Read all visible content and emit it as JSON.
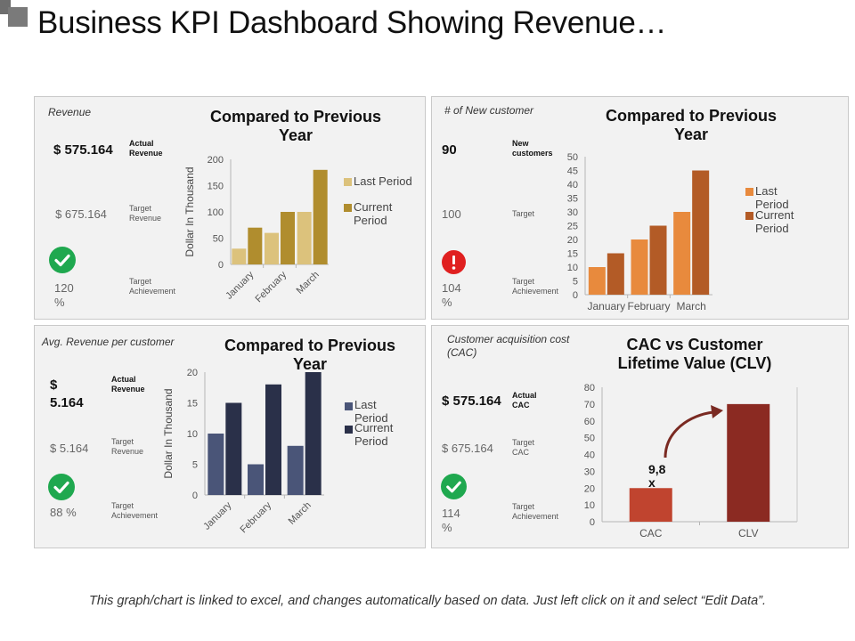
{
  "page": {
    "title": "Business KPI Dashboard Showing Revenue…",
    "footer": "This graph/chart is linked to excel, and changes automatically based on data. Just left click on it and select “Edit Data”."
  },
  "panels": {
    "revenue": {
      "label": "Revenue",
      "chart_title": "Compared to Previous Year",
      "actual_value": "$ 575.164",
      "actual_key": "Actual Revenue",
      "target_value": "$ 675.164",
      "target_key": "Target Revenue",
      "achievement_value": "120 %",
      "achievement_key": "Target Achievement",
      "status_icon": "check-circle-icon",
      "legend": [
        "Last Period",
        "Current Period"
      ]
    },
    "new_customer": {
      "label": "# of New customer",
      "chart_title": "Compared to Previous Year",
      "actual_value": "90",
      "actual_key": "New customers",
      "target_value": "100",
      "target_key": "Target",
      "achievement_value": "104 %",
      "achievement_key": "Target Achievement",
      "status_icon": "alert-circle-icon",
      "legend": [
        "Last Period",
        "Current Period"
      ]
    },
    "avg_revenue": {
      "label": "Avg. Revenue per customer",
      "chart_title": "Compared to Previous Year",
      "actual_value": "$ 5.164",
      "actual_key": "Actual Revenue",
      "target_value": "$ 5.164",
      "target_key": "Target Revenue",
      "achievement_value": "88 %",
      "achievement_key": "Target Achievement",
      "status_icon": "check-circle-icon",
      "legend": [
        "Last Period",
        "Current Period"
      ]
    },
    "cac": {
      "label": "Customer acquisition cost (CAC)",
      "chart_title": "CAC vs Customer Lifetime Value (CLV)",
      "actual_value": "$ 575.164",
      "actual_key": "Actual CAC",
      "target_value": "$ 675.164",
      "target_key": "Target CAC",
      "achievement_value": "114 %",
      "achievement_key": "Target Achievement",
      "status_icon": "check-circle-icon",
      "annotation": "9,8 x",
      "arrow_icon": "curved-arrow-icon"
    }
  },
  "colors": {
    "panel_bg": "#f2f2f2",
    "check_green": "#1fa84f",
    "alert_red": "#e02020",
    "gold_light": "#dcc27c",
    "gold_dark": "#b08d2e",
    "orange_light": "#e88a3d",
    "orange_dark": "#b35b26",
    "navy_light": "#4a5578",
    "navy_dark": "#2a3049",
    "red_bar": "#c0442f",
    "red_dark": "#8b2a22"
  },
  "chart_data": [
    {
      "id": "revenue",
      "type": "bar",
      "title": "Compared to Previous Year",
      "ylabel": "Dollar In Thousand",
      "categories": [
        "January",
        "February",
        "March"
      ],
      "series": [
        {
          "name": "Last Period",
          "values": [
            30,
            60,
            100
          ],
          "color": "#dcc27c"
        },
        {
          "name": "Current Period",
          "values": [
            70,
            100,
            180
          ],
          "color": "#b08d2e"
        }
      ],
      "ylim": [
        0,
        200
      ],
      "yticks": [
        "0",
        "50",
        "100",
        "150",
        "200"
      ],
      "legend": "right"
    },
    {
      "id": "new_customer",
      "type": "bar",
      "title": "Compared to Previous Year",
      "categories": [
        "January",
        "February",
        "March"
      ],
      "series": [
        {
          "name": "Last Period",
          "values": [
            10,
            20,
            30
          ],
          "color": "#e88a3d"
        },
        {
          "name": "Current Period",
          "values": [
            15,
            25,
            45
          ],
          "color": "#b35b26"
        }
      ],
      "ylim": [
        0,
        50
      ],
      "yticks": [
        "0",
        "5",
        "10",
        "15",
        "20",
        "25",
        "30",
        "35",
        "40",
        "45",
        "50"
      ],
      "legend": "right"
    },
    {
      "id": "avg_revenue",
      "type": "bar",
      "title": "Compared to Previous Year",
      "ylabel": "Dollar In Thousand",
      "categories": [
        "January",
        "February",
        "March"
      ],
      "series": [
        {
          "name": "Last Period",
          "values": [
            10,
            5,
            8
          ],
          "color": "#4a5578"
        },
        {
          "name": "Current Period",
          "values": [
            15,
            18,
            20
          ],
          "color": "#2a3049"
        }
      ],
      "ylim": [
        0,
        20
      ],
      "yticks": [
        "0",
        "5",
        "10",
        "15",
        "20"
      ],
      "legend": "right"
    },
    {
      "id": "cac",
      "type": "bar",
      "title": "CAC vs Customer Lifetime Value (CLV)",
      "categories": [
        "CAC",
        "CLV"
      ],
      "series": [
        {
          "values": [
            20,
            70
          ],
          "colors": [
            "#c0442f",
            "#8b2a22"
          ]
        }
      ],
      "ylim": [
        0,
        80
      ],
      "yticks": [
        "0",
        "10",
        "20",
        "30",
        "40",
        "50",
        "60",
        "70",
        "80"
      ],
      "annotation": "9,8 x"
    }
  ]
}
